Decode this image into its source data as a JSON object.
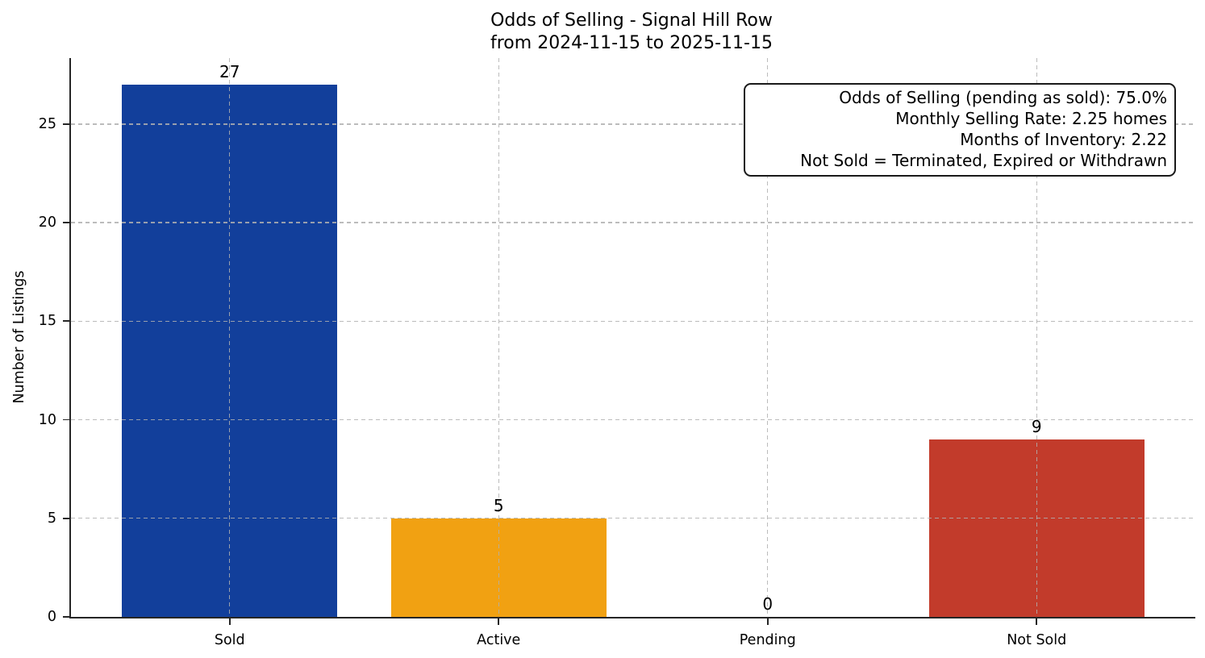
{
  "chart_data": {
    "type": "bar",
    "title": "Odds of Selling - Signal Hill Row\nfrom 2024-11-15 to 2025-11-15",
    "xlabel": "",
    "ylabel": "Number of Listings",
    "categories": [
      "Sold",
      "Active",
      "Pending",
      "Not Sold"
    ],
    "values": [
      27,
      5,
      0,
      9
    ],
    "value_labels": [
      "27",
      "5",
      "0",
      "9"
    ],
    "bar_colors": [
      "#123F9B",
      "#F1A112",
      null,
      "#C23B2B"
    ],
    "ylim": [
      0,
      28.35
    ],
    "yticks": [
      0,
      5,
      10,
      15,
      20,
      25
    ],
    "grid": true,
    "grid_style": "dashed",
    "legend_position": "none",
    "annotation": {
      "lines": [
        "Odds of Selling (pending as sold): 75.0%",
        "Monthly Selling Rate: 2.25 homes",
        "Months of Inventory: 2.22",
        "Not Sold = Terminated, Expired or Withdrawn"
      ]
    }
  }
}
